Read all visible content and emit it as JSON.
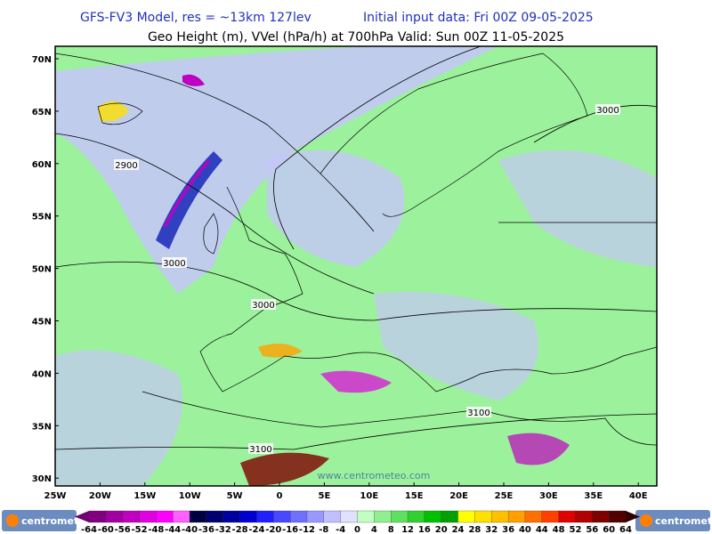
{
  "header": {
    "model_line": "GFS-FV3 Model, res = ~13km 127lev",
    "init_line": "Initial input data: Fri 00Z 09-05-2025",
    "field_line": "Geo Height (m), VVel (hPa/h) at 700hPa  Valid: Sun 00Z 11-05-2025"
  },
  "map": {
    "lat_labels": [
      "70N",
      "65N",
      "60N",
      "55N",
      "50N",
      "45N",
      "40N",
      "35N",
      "30N"
    ],
    "lon_labels": [
      "25W",
      "20W",
      "15W",
      "10W",
      "5W",
      "0",
      "5E",
      "10E",
      "15E",
      "20E",
      "25E",
      "30E",
      "35E",
      "40E"
    ],
    "contour_labels": [
      "2900",
      "3000",
      "3000",
      "3000",
      "3100",
      "3100"
    ],
    "watermark": "www.centrometeo.com"
  },
  "colorbar": {
    "labels": [
      "-64",
      "-60",
      "-56",
      "-52",
      "-48",
      "-44",
      "-40",
      "-36",
      "-32",
      "-28",
      "-24",
      "-20",
      "-16",
      "-12",
      "-8",
      "-4",
      "0",
      "4",
      "8",
      "12",
      "16",
      "20",
      "24",
      "28",
      "32",
      "36",
      "40",
      "44",
      "48",
      "52",
      "56",
      "60",
      "64"
    ],
    "colors": [
      "#800080",
      "#a000a0",
      "#c000c0",
      "#e000e0",
      "#ff00ff",
      "#ff60ff",
      "#000040",
      "#000070",
      "#0000a0",
      "#0000d0",
      "#2020ff",
      "#4848ff",
      "#7070ff",
      "#9898ff",
      "#c0c0ff",
      "#e0e0ff",
      "#c0ffc0",
      "#90f090",
      "#60e060",
      "#30d030",
      "#00c000",
      "#00a000",
      "#ffff00",
      "#ffe000",
      "#ffc000",
      "#ffa000",
      "#ff7000",
      "#ff4000",
      "#e00000",
      "#b00000",
      "#800000",
      "#500000"
    ],
    "low_color": "#700070",
    "high_color": "#300000"
  },
  "logos": {
    "left": "centrometeo",
    "right": "centrometeo"
  }
}
